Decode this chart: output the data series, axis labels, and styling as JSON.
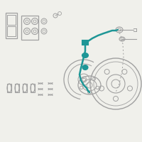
{
  "bg_color": "#f0f0eb",
  "oc": "#a0a0a0",
  "hc": "#1e9696",
  "lw_main": 0.8,
  "figsize": [
    2.0,
    2.0
  ],
  "dpi": 100
}
